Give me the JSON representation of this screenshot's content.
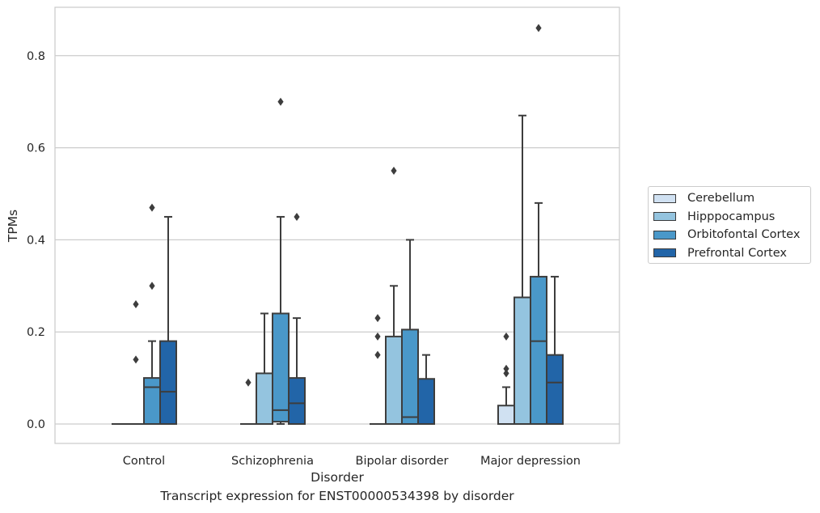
{
  "caption": "Transcript expression for ENST00000534398 by disorder",
  "chart_data": {
    "type": "box",
    "title": "",
    "xlabel": "Disorder",
    "ylabel": "TPMs",
    "ylim": [
      -0.04,
      0.9
    ],
    "yticks": [
      0.0,
      0.2,
      0.4,
      0.6,
      0.8
    ],
    "ytick_labels": [
      "0.0",
      "0.2",
      "0.4",
      "0.6",
      "0.8"
    ],
    "grid": "horizontal",
    "legend_position": "right",
    "categories": [
      "Control",
      "Schizophrenia",
      "Bipolar disorder",
      "Major depression"
    ],
    "series": [
      {
        "name": "Cerebellum",
        "color": "#d0e1f2",
        "boxes": [
          {
            "q1": 0.0,
            "median": 0.0,
            "q3": 0.0,
            "whisker_low": 0.0,
            "whisker_high": 0.0,
            "outliers": []
          },
          {
            "q1": 0.0,
            "median": 0.0,
            "q3": 0.0,
            "whisker_low": 0.0,
            "whisker_high": 0.0,
            "outliers": [
              0.09
            ]
          },
          {
            "q1": 0.0,
            "median": 0.0,
            "q3": 0.0,
            "whisker_low": 0.0,
            "whisker_high": 0.0,
            "outliers": [
              0.15,
              0.19,
              0.23
            ]
          },
          {
            "q1": 0.0,
            "median": 0.0,
            "q3": 0.04,
            "whisker_low": 0.0,
            "whisker_high": 0.08,
            "outliers": [
              0.11,
              0.12,
              0.19
            ]
          }
        ]
      },
      {
        "name": "Hipppocampus",
        "color": "#94c4df",
        "boxes": [
          {
            "q1": 0.0,
            "median": 0.0,
            "q3": 0.0,
            "whisker_low": 0.0,
            "whisker_high": 0.0,
            "outliers": [
              0.14,
              0.26
            ]
          },
          {
            "q1": 0.0,
            "median": 0.0,
            "q3": 0.11,
            "whisker_low": 0.0,
            "whisker_high": 0.24,
            "outliers": []
          },
          {
            "q1": 0.0,
            "median": 0.0,
            "q3": 0.19,
            "whisker_low": 0.0,
            "whisker_high": 0.3,
            "outliers": [
              0.55
            ]
          },
          {
            "q1": 0.0,
            "median": 0.0,
            "q3": 0.275,
            "whisker_low": 0.0,
            "whisker_high": 0.67,
            "outliers": []
          }
        ]
      },
      {
        "name": "Orbitofontal Cortex",
        "color": "#4a98c9",
        "boxes": [
          {
            "q1": 0.0,
            "median": 0.08,
            "q3": 0.1,
            "whisker_low": 0.0,
            "whisker_high": 0.18,
            "outliers": [
              0.3,
              0.47
            ]
          },
          {
            "q1": 0.005,
            "median": 0.03,
            "q3": 0.24,
            "whisker_low": 0.0,
            "whisker_high": 0.45,
            "outliers": [
              0.7
            ]
          },
          {
            "q1": 0.0,
            "median": 0.015,
            "q3": 0.205,
            "whisker_low": 0.0,
            "whisker_high": 0.4,
            "outliers": []
          },
          {
            "q1": 0.0,
            "median": 0.18,
            "q3": 0.32,
            "whisker_low": 0.0,
            "whisker_high": 0.48,
            "outliers": [
              0.86
            ]
          }
        ]
      },
      {
        "name": "Prefrontal Cortex",
        "color": "#2265a8",
        "boxes": [
          {
            "q1": 0.0,
            "median": 0.07,
            "q3": 0.18,
            "whisker_low": 0.0,
            "whisker_high": 0.45,
            "outliers": []
          },
          {
            "q1": 0.0,
            "median": 0.045,
            "q3": 0.1,
            "whisker_low": 0.0,
            "whisker_high": 0.23,
            "outliers": [
              0.45
            ]
          },
          {
            "q1": 0.0,
            "median": 0.0,
            "q3": 0.098,
            "whisker_low": 0.0,
            "whisker_high": 0.15,
            "outliers": []
          },
          {
            "q1": 0.0,
            "median": 0.09,
            "q3": 0.15,
            "whisker_low": 0.0,
            "whisker_high": 0.32,
            "outliers": []
          }
        ]
      }
    ]
  }
}
